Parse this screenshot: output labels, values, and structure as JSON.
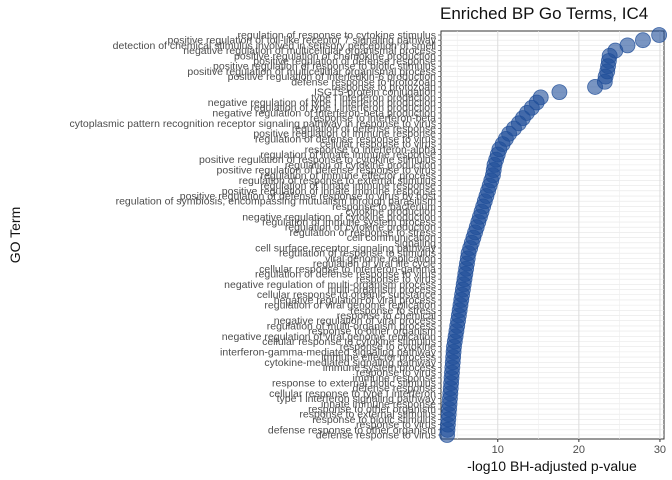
{
  "chart_data": {
    "type": "scatter",
    "title": "Enriched BP Go Terms, IC4",
    "xlabel": "-log10 BH-adjusted p-value",
    "ylabel": "GO Term",
    "xlim": [
      3,
      30.5
    ],
    "xticks": [
      10,
      20,
      30
    ],
    "grid": true,
    "point_color": "#1f4e99",
    "points": [
      {
        "term": "regulation of response to cytokine stimulus",
        "value": 29.9
      },
      {
        "term": "positive regulation of toll-like receptor 7 signaling pathway",
        "value": 27.9
      },
      {
        "term": "detection of chemical stimulus involved in sensory perception of smell",
        "value": 26.0
      },
      {
        "term": "negative regulation of multicellular organismal process",
        "value": 24.5
      },
      {
        "term": "positive regulation of chemokine production",
        "value": 23.8
      },
      {
        "term": "positive regulation of defense response",
        "value": 23.7
      },
      {
        "term": "positive regulation of response to biotic stimulus",
        "value": 23.6
      },
      {
        "term": "positive regulation of multicellular organismal process",
        "value": 23.5
      },
      {
        "term": "positive regulation of interleukin-6 production",
        "value": 23.3
      },
      {
        "term": "defense response to protozoan",
        "value": 23.2
      },
      {
        "term": "response to protozoan",
        "value": 22.0
      },
      {
        "term": "ISG15-protein conjugation",
        "value": 17.6
      },
      {
        "term": "type I interferon production",
        "value": 15.3
      },
      {
        "term": "negative regulation of type I interferon production",
        "value": 14.8
      },
      {
        "term": "regulation of type I interferon production",
        "value": 14.2
      },
      {
        "term": "negative regulation of interferon-beta production",
        "value": 13.6
      },
      {
        "term": "response to interferon-beta",
        "value": 13.1
      },
      {
        "term": "cytoplasmic pattern recognition receptor signaling pathway in response to virus",
        "value": 12.6
      },
      {
        "term": "regulation of defense response",
        "value": 12.0
      },
      {
        "term": "positive regulation of immune response",
        "value": 11.4
      },
      {
        "term": "regulation of defense response to virus",
        "value": 11.0
      },
      {
        "term": "cellular response to virus",
        "value": 10.6
      },
      {
        "term": "response to interferon-alpha",
        "value": 10.2
      },
      {
        "term": "regulation of innate immune response",
        "value": 10.0
      },
      {
        "term": "positive regulation of response to cytokine stimulus",
        "value": 9.8
      },
      {
        "term": "regulation of cytokine production",
        "value": 9.6
      },
      {
        "term": "positive regulation of defense response to virus",
        "value": 9.5
      },
      {
        "term": "regulation of immune effector process",
        "value": 9.4
      },
      {
        "term": "regulation of response to external stimulus",
        "value": 9.2
      },
      {
        "term": "regulation of innate immune response",
        "value": 9.0
      },
      {
        "term": "positive regulation of innate immune response",
        "value": 8.8
      },
      {
        "term": "positive regulation of defense response to virus by host",
        "value": 8.6
      },
      {
        "term": "regulation of symbiosis, encompassing mutualism through parasitism",
        "value": 8.4
      },
      {
        "term": "response to bacterium",
        "value": 8.2
      },
      {
        "term": "cytokine production",
        "value": 8.0
      },
      {
        "term": "negative regulation of cytokine production",
        "value": 7.8
      },
      {
        "term": "regulation of immune system process",
        "value": 7.6
      },
      {
        "term": "regulation of cytokine production",
        "value": 7.4
      },
      {
        "term": "regulation of response to stress",
        "value": 7.2
      },
      {
        "term": "cell communication",
        "value": 7.0
      },
      {
        "term": "signaling",
        "value": 6.8
      },
      {
        "term": "cell surface receptor signaling pathway",
        "value": 6.6
      },
      {
        "term": "regulation of response to stimulus",
        "value": 6.4
      },
      {
        "term": "viral genome replication",
        "value": 6.3
      },
      {
        "term": "regulation of viral life cycle",
        "value": 6.2
      },
      {
        "term": "cellular response to interferon-gamma",
        "value": 6.1
      },
      {
        "term": "regulation of defense response to virus",
        "value": 6.0
      },
      {
        "term": "response to virus",
        "value": 5.9
      },
      {
        "term": "negative regulation of multi-organism process",
        "value": 5.8
      },
      {
        "term": "multi-organism process",
        "value": 5.7
      },
      {
        "term": "cellular response to organic substance",
        "value": 5.6
      },
      {
        "term": "negative regulation of viral process",
        "value": 5.5
      },
      {
        "term": "regulation of viral genome replication",
        "value": 5.4
      },
      {
        "term": "response to stress",
        "value": 5.3
      },
      {
        "term": "response to chemical",
        "value": 5.2
      },
      {
        "term": "negative regulation of viral process",
        "value": 5.1
      },
      {
        "term": "regulation of multi-organism process",
        "value": 5.0
      },
      {
        "term": "response to other organism",
        "value": 4.9
      },
      {
        "term": "negative regulation of viral genome replication",
        "value": 4.8
      },
      {
        "term": "cellular response to cytokine stimulus",
        "value": 4.7
      },
      {
        "term": "response to cytokine",
        "value": 4.6
      },
      {
        "term": "interferon-gamma-mediated signaling pathway",
        "value": 4.55
      },
      {
        "term": "immune effector process",
        "value": 4.5
      },
      {
        "term": "cytokine-mediated signaling pathway",
        "value": 4.45
      },
      {
        "term": "immune system process",
        "value": 4.4
      },
      {
        "term": "response to virus",
        "value": 4.35
      },
      {
        "term": "immune response",
        "value": 4.3
      },
      {
        "term": "response to external biotic stimulus",
        "value": 4.25
      },
      {
        "term": "defense response",
        "value": 4.2
      },
      {
        "term": "cellular response to type I interferon",
        "value": 4.15
      },
      {
        "term": "type I interferon signaling pathway",
        "value": 4.1
      },
      {
        "term": "innate immune response",
        "value": 4.05
      },
      {
        "term": "response to other organism",
        "value": 4.0
      },
      {
        "term": "response to external stimulus",
        "value": 3.95
      },
      {
        "term": "response to biotic stimulus",
        "value": 3.9
      },
      {
        "term": "response to virus",
        "value": 3.85
      },
      {
        "term": "defense response to other organism",
        "value": 3.8
      },
      {
        "term": "defense response to virus",
        "value": 3.75
      }
    ]
  }
}
